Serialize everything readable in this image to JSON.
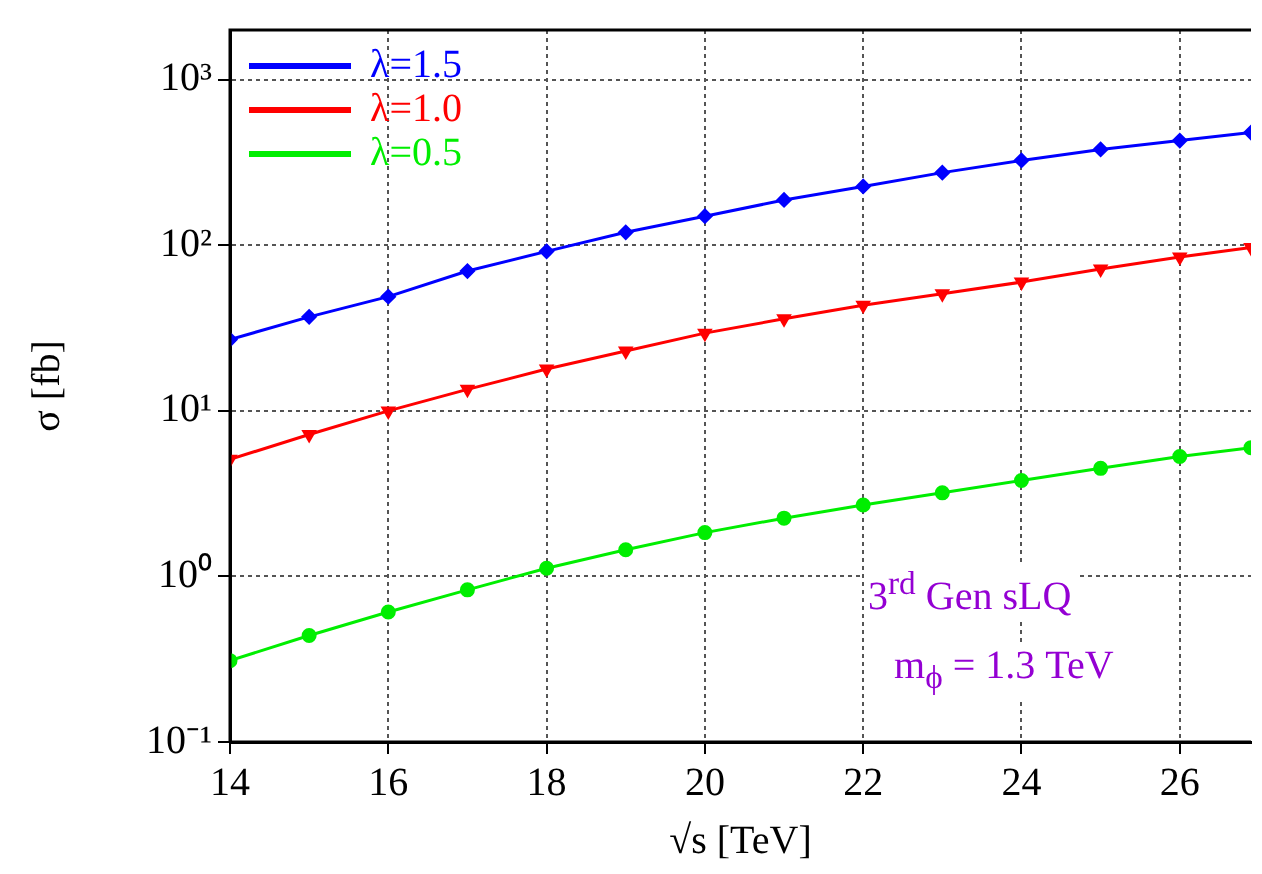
{
  "chart_data": {
    "type": "line",
    "xlabel": "√s [TeV]",
    "ylabel": "σ [fb]",
    "log": "y",
    "grid": true,
    "legend": "top left",
    "line_style": "solid",
    "x": [
      14,
      15,
      16,
      17,
      18,
      19,
      20,
      21,
      22,
      23,
      24,
      25,
      26,
      26.9
    ],
    "xlim": [
      14,
      26.9
    ],
    "xticks": [
      14,
      16,
      18,
      20,
      22,
      24,
      26
    ],
    "ylim": [
      0.1,
      2000
    ],
    "yticks": [
      {
        "value": 0.1,
        "label": "10⁻¹"
      },
      {
        "value": 1,
        "label": "10⁰"
      },
      {
        "value": 10,
        "label": "10¹"
      },
      {
        "value": 100,
        "label": "10²"
      },
      {
        "value": 1000,
        "label": "10³"
      }
    ],
    "series": [
      {
        "name": "λ=1.5",
        "color": "#0000ff",
        "marker": "diamond",
        "values": [
          27,
          37,
          49,
          70,
          92,
          120,
          150,
          188,
          227,
          275,
          326,
          380,
          430,
          480
        ]
      },
      {
        "name": "λ=1.0",
        "color": "#ff0000",
        "marker": "triangle",
        "values": [
          5.1,
          7.2,
          10,
          13.5,
          17.9,
          23,
          29.5,
          36,
          43.5,
          51,
          60,
          72,
          85,
          97
        ]
      },
      {
        "name": "λ=0.5",
        "color": "#00ee00",
        "marker": "circle",
        "values": [
          0.31,
          0.44,
          0.61,
          0.83,
          1.12,
          1.45,
          1.84,
          2.25,
          2.7,
          3.2,
          3.8,
          4.5,
          5.3,
          6.0
        ]
      }
    ],
    "annotations": [
      "3$^{rd}$ Gen sLQ",
      "m$_{ϕ}$ = 1.3 TeV"
    ]
  }
}
